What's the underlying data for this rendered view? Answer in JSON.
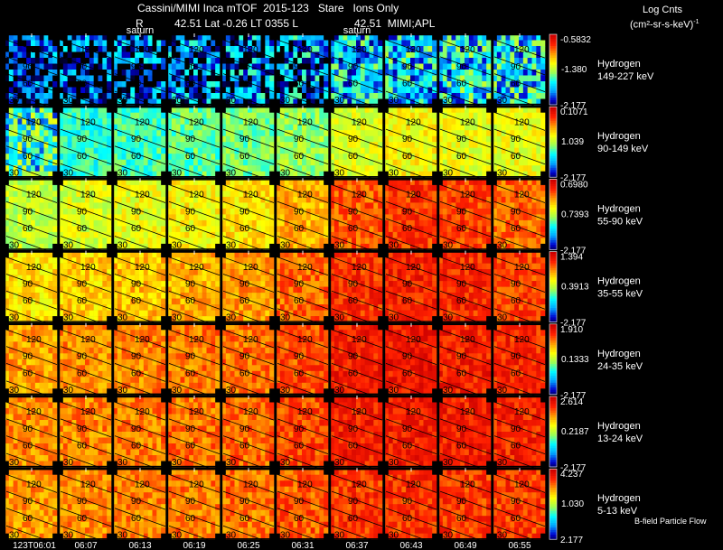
{
  "header": {
    "title": "Cassini/MIMI Inca mTOF  2015-123   Stare   Ions Only",
    "line2_r": "R",
    "line2_pos": "42.51 Lat -0.26 LT 0355 L",
    "line2_l": "42.51  MIMI;APL",
    "units_line1": "Log Cnts",
    "units_line2": "(cm²-sr-s-keV)",
    "units_sup": "-1"
  },
  "footer_note": "B-field Particle Flow",
  "chart_data": {
    "type": "heatmap",
    "title": "Cassini/MIMI Inca mTOF 2015-123 Stare Ions Only",
    "time_labels": [
      "123T06:01",
      "06:07",
      "06:13",
      "06:19",
      "06:25",
      "06:31",
      "06:37",
      "06:43",
      "06:49",
      "06:55"
    ],
    "contour_labels": [
      "120",
      "90",
      "60",
      "30"
    ],
    "saturn_labels": [
      {
        "text": "saturn",
        "row": 0,
        "column": 2
      },
      {
        "text": "saturn",
        "row": 0,
        "column": 6
      }
    ],
    "colorscale": [
      "#000000",
      "#0000d0",
      "#00a8ff",
      "#00ffff",
      "#a0ff50",
      "#ffff00",
      "#ff9900",
      "#ff2000",
      "#cc0000"
    ],
    "rows": [
      {
        "species": "Hydrogen",
        "energy": "149-227 keV",
        "max": "-0.5832",
        "mid": "-1.380",
        "min": "-2.177",
        "levels": [
          0.15,
          0.15,
          0.18,
          0.2,
          0.22,
          0.24,
          0.3,
          0.32,
          0.33,
          0.33
        ]
      },
      {
        "species": "Hydrogen",
        "energy": "90-149 keV",
        "max": "0.1071",
        "mid": "1.039",
        "min": "-2.177",
        "levels": [
          0.38,
          0.4,
          0.42,
          0.45,
          0.47,
          0.5,
          0.58,
          0.62,
          0.6,
          0.6
        ]
      },
      {
        "species": "Hydrogen",
        "energy": "55-90 keV",
        "max": "0.6980",
        "mid": "0.7393",
        "min": "-2.177",
        "levels": [
          0.55,
          0.58,
          0.6,
          0.63,
          0.66,
          0.72,
          0.82,
          0.86,
          0.85,
          0.8
        ]
      },
      {
        "species": "Hydrogen",
        "energy": "35-55 keV",
        "max": "1.394",
        "mid": "0.3913",
        "min": "-2.177",
        "levels": [
          0.66,
          0.68,
          0.7,
          0.72,
          0.74,
          0.8,
          0.87,
          0.89,
          0.88,
          0.85
        ]
      },
      {
        "species": "Hydrogen",
        "energy": "24-35 keV",
        "max": "1.910",
        "mid": "0.1333",
        "min": "-2.177",
        "levels": [
          0.74,
          0.76,
          0.77,
          0.78,
          0.79,
          0.83,
          0.9,
          0.91,
          0.9,
          0.88
        ]
      },
      {
        "species": "Hydrogen",
        "energy": "13-24 keV",
        "max": "2.614",
        "mid": "0.2187",
        "min": "-2.177",
        "levels": [
          0.76,
          0.77,
          0.78,
          0.79,
          0.8,
          0.84,
          0.9,
          0.91,
          0.9,
          0.89
        ]
      },
      {
        "species": "Hydrogen",
        "energy": "5-13 keV",
        "max": "4.237",
        "mid": "1.030",
        "min": "2.177",
        "levels": [
          0.75,
          0.76,
          0.77,
          0.78,
          0.79,
          0.82,
          0.86,
          0.87,
          0.86,
          0.85
        ]
      }
    ]
  }
}
